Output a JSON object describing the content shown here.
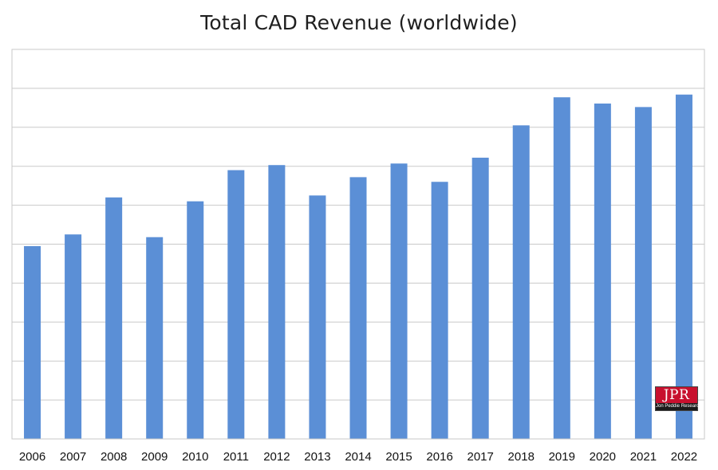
{
  "chart_data": {
    "type": "bar",
    "title": "Total CAD Revenue (worldwide)",
    "categories": [
      "2006",
      "2007",
      "2008",
      "2009",
      "2010",
      "2011",
      "2012",
      "2013",
      "2014",
      "2015",
      "2016",
      "2017",
      "2018",
      "2019",
      "2020",
      "2021",
      "2022"
    ],
    "values": [
      4.95,
      5.25,
      6.2,
      5.18,
      6.1,
      6.9,
      7.03,
      6.25,
      6.72,
      7.07,
      6.6,
      7.22,
      8.05,
      8.77,
      8.61,
      8.52,
      8.84
    ],
    "ylim": [
      0,
      10
    ],
    "grid": true,
    "color": "#5b8fd6",
    "y_tick_labels_shown": false
  },
  "logo": {
    "main": "JPR",
    "sub": "Jon Peddie Research"
  }
}
